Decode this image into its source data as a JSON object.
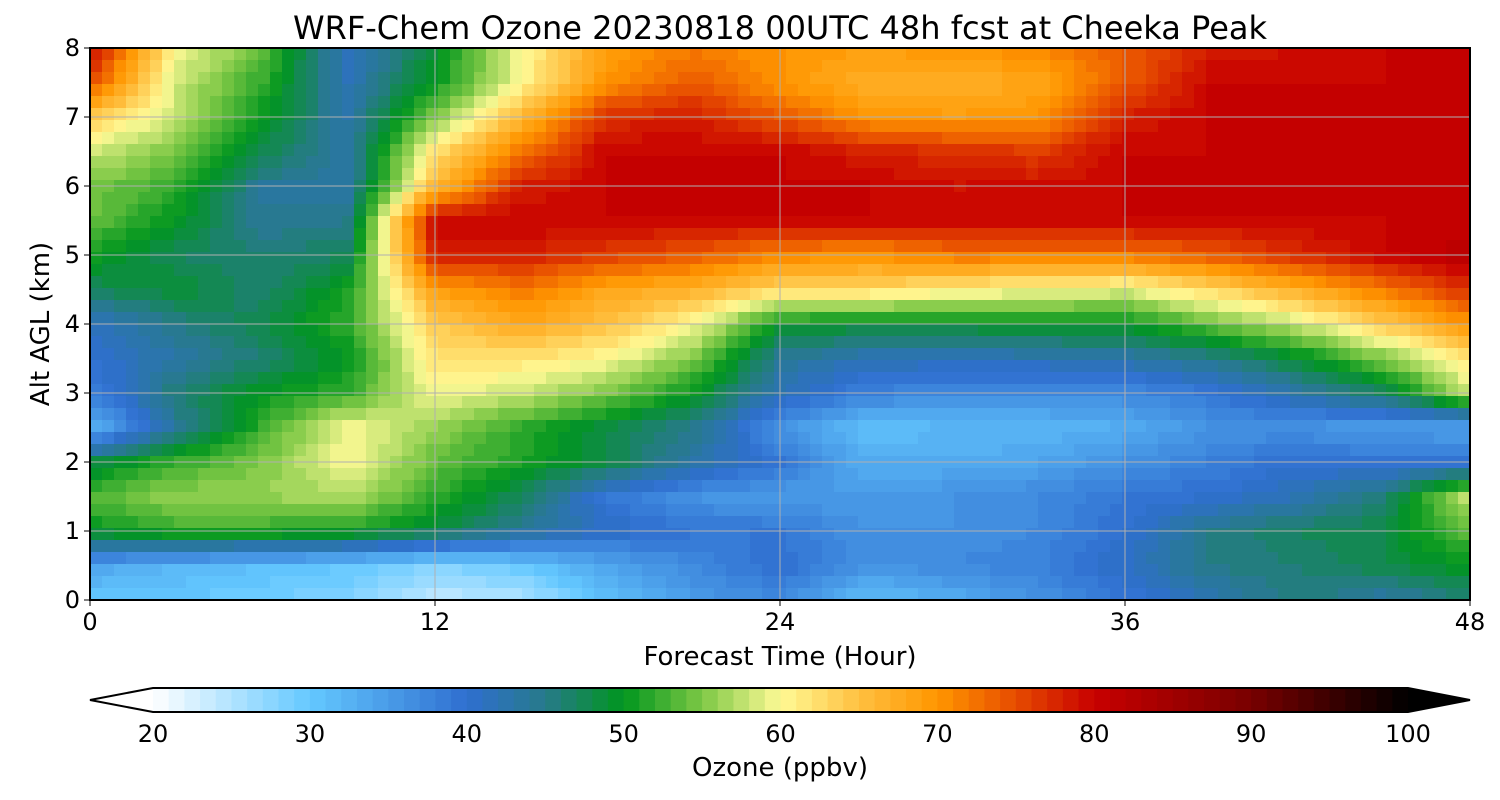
{
  "chart_data": {
    "type": "heatmap",
    "title": "WRF-Chem Ozone  20230818 00UTC 48h fcst at Cheeka Peak",
    "xlabel": "Forecast Time (Hour)",
    "ylabel": "Alt AGL (km)",
    "xlim": [
      0,
      48
    ],
    "ylim": [
      0,
      8
    ],
    "xticks": [
      "0",
      "12",
      "24",
      "36",
      "48"
    ],
    "yticks": [
      "0",
      "1",
      "2",
      "3",
      "4",
      "5",
      "6",
      "7",
      "8"
    ],
    "grid": true,
    "x": [
      0,
      3,
      6,
      9,
      12,
      15,
      18,
      21,
      24,
      27,
      30,
      33,
      36,
      39,
      42,
      45,
      48
    ],
    "y": [
      0,
      0.5,
      1,
      1.5,
      2,
      2.5,
      3,
      3.5,
      4,
      4.5,
      5,
      5.5,
      6,
      6.5,
      7,
      7.5,
      8
    ],
    "z": [
      [
        30,
        30,
        29,
        28,
        24,
        25,
        31,
        35,
        37,
        31,
        33,
        36,
        39,
        42,
        46,
        43,
        46
      ],
      [
        34,
        32,
        31,
        30,
        28,
        30,
        34,
        37,
        40,
        36,
        37,
        38,
        41,
        45,
        46,
        48,
        50
      ],
      [
        50,
        52,
        52,
        51,
        48,
        44,
        41,
        39,
        39,
        36,
        36,
        37,
        40,
        45,
        47,
        48,
        54
      ],
      [
        53,
        56,
        56,
        57,
        52,
        47,
        39,
        36,
        35,
        35,
        36,
        37,
        39,
        40,
        42,
        46,
        58
      ],
      [
        48,
        52,
        55,
        60,
        54,
        51,
        48,
        43,
        39,
        33,
        33,
        34,
        36,
        38,
        40,
        39,
        40
      ],
      [
        32,
        44,
        52,
        60,
        56,
        52,
        48,
        45,
        36,
        31,
        32,
        32,
        33,
        36,
        36,
        35,
        34
      ],
      [
        38,
        46,
        50,
        52,
        60,
        58,
        55,
        50,
        42,
        38,
        37,
        37,
        37,
        39,
        43,
        47,
        58
      ],
      [
        40,
        43,
        46,
        50,
        62,
        62,
        60,
        55,
        44,
        42,
        42,
        42,
        43,
        45,
        49,
        55,
        62
      ],
      [
        41,
        45,
        48,
        52,
        64,
        68,
        65,
        60,
        50,
        49,
        49,
        50,
        50,
        54,
        58,
        64,
        70
      ],
      [
        47,
        49,
        46,
        51,
        69,
        72,
        68,
        67,
        63,
        63,
        61,
        60,
        59,
        63,
        67,
        72,
        77
      ],
      [
        51,
        47,
        46,
        47,
        78,
        78,
        76,
        74,
        71,
        70,
        72,
        72,
        72,
        74,
        77,
        80,
        82
      ],
      [
        54,
        50,
        44,
        45,
        80,
        80,
        80,
        80,
        80,
        80,
        80,
        80,
        80,
        80,
        80,
        80,
        80
      ],
      [
        55,
        52,
        44,
        43,
        66,
        78,
        80,
        80,
        80,
        80,
        79,
        79,
        80,
        80,
        80,
        80,
        80
      ],
      [
        58,
        55,
        48,
        43,
        62,
        72,
        80,
        80,
        80,
        78,
        77,
        76,
        80,
        80,
        80,
        80,
        80
      ],
      [
        64,
        58,
        50,
        43,
        55,
        66,
        77,
        78,
        74,
        70,
        69,
        70,
        78,
        80,
        80,
        80,
        80
      ],
      [
        75,
        58,
        52,
        42,
        50,
        60,
        70,
        74,
        70,
        67,
        67,
        68,
        74,
        80,
        80,
        80,
        80
      ],
      [
        80,
        60,
        54,
        41,
        49,
        60,
        69,
        72,
        70,
        69,
        70,
        71,
        74,
        78,
        79,
        80,
        81
      ]
    ],
    "colorbar": {
      "label": "Ozone  (ppbv)",
      "min": 20,
      "max": 100,
      "ticks": [
        "20",
        "30",
        "40",
        "50",
        "60",
        "70",
        "80",
        "90",
        "100"
      ],
      "extend": "both"
    },
    "colormap": [
      {
        "v": 20,
        "c": "#ffffff"
      },
      {
        "v": 30,
        "c": "#64c8ff"
      },
      {
        "v": 40,
        "c": "#2f6fd0"
      },
      {
        "v": 45,
        "c": "#277a8a"
      },
      {
        "v": 50,
        "c": "#00961e"
      },
      {
        "v": 55,
        "c": "#7dc845"
      },
      {
        "v": 60,
        "c": "#fffa96"
      },
      {
        "v": 65,
        "c": "#ffc040"
      },
      {
        "v": 70,
        "c": "#ff9600"
      },
      {
        "v": 75,
        "c": "#e64b00"
      },
      {
        "v": 80,
        "c": "#c80000"
      },
      {
        "v": 90,
        "c": "#780000"
      },
      {
        "v": 100,
        "c": "#000000"
      }
    ]
  }
}
